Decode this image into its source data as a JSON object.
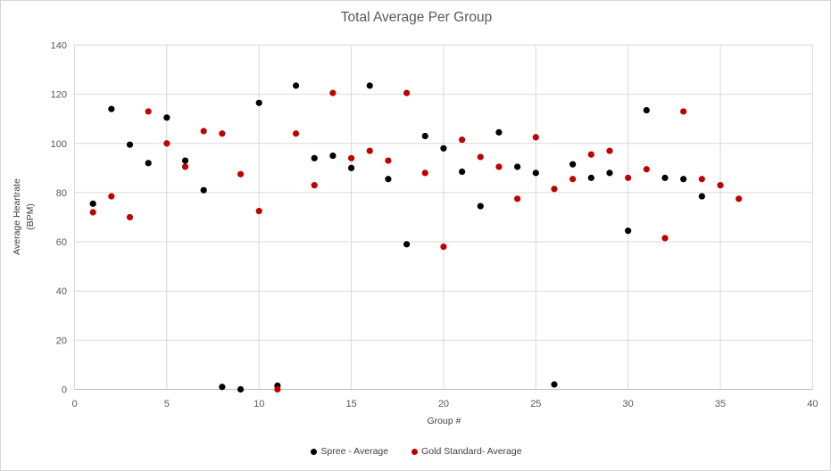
{
  "chart": {
    "title": "Total Average Per Group",
    "x_axis_title": "Group #",
    "y_axis_label_lines": [
      "Average Heartrate",
      "(BPM)"
    ]
  },
  "chart_data": {
    "type": "scatter",
    "title": "Total Average Per Group",
    "xlabel": "Group #",
    "ylabel": "Average Heartrate (BPM)",
    "xlim": [
      0,
      40
    ],
    "ylim": [
      0,
      140
    ],
    "x_ticks": [
      0,
      5,
      10,
      15,
      20,
      25,
      30,
      35,
      40
    ],
    "y_ticks": [
      0,
      20,
      40,
      60,
      80,
      100,
      120,
      140
    ],
    "grid": true,
    "legend_position": "bottom",
    "gridline_color": "#d9d9d9",
    "axis_line_color": "#bfbfbf",
    "series": [
      {
        "name": "Spree - Average",
        "color": "#000000",
        "points": [
          [
            1,
            75.5
          ],
          [
            2,
            114
          ],
          [
            3,
            99.5
          ],
          [
            4,
            92
          ],
          [
            5,
            110.5
          ],
          [
            6,
            93
          ],
          [
            7,
            81
          ],
          [
            8,
            1
          ],
          [
            9,
            0
          ],
          [
            10,
            116.5
          ],
          [
            11,
            1.5
          ],
          [
            12,
            123.5
          ],
          [
            13,
            94
          ],
          [
            14,
            95
          ],
          [
            15,
            90
          ],
          [
            16,
            123.5
          ],
          [
            17,
            85.5
          ],
          [
            18,
            59
          ],
          [
            19,
            103
          ],
          [
            20,
            98
          ],
          [
            21,
            88.5
          ],
          [
            22,
            74.5
          ],
          [
            23,
            104.5
          ],
          [
            24,
            90.5
          ],
          [
            25,
            88
          ],
          [
            26,
            2
          ],
          [
            27,
            91.5
          ],
          [
            28,
            86
          ],
          [
            29,
            88
          ],
          [
            30,
            64.5
          ],
          [
            31,
            113.5
          ],
          [
            32,
            86
          ],
          [
            33,
            85.5
          ],
          [
            34,
            78.5
          ]
        ]
      },
      {
        "name": "Gold Standard- Average",
        "color": "#c00000",
        "points": [
          [
            1,
            72
          ],
          [
            2,
            78.5
          ],
          [
            3,
            70
          ],
          [
            4,
            113
          ],
          [
            5,
            100
          ],
          [
            6,
            90.5
          ],
          [
            7,
            105
          ],
          [
            8,
            104
          ],
          [
            9,
            87.5
          ],
          [
            10,
            72.5
          ],
          [
            11,
            0
          ],
          [
            12,
            104
          ],
          [
            13,
            83
          ],
          [
            14,
            120.5
          ],
          [
            15,
            94
          ],
          [
            16,
            97
          ],
          [
            17,
            93
          ],
          [
            18,
            120.5
          ],
          [
            19,
            88
          ],
          [
            20,
            58
          ],
          [
            21,
            101.5
          ],
          [
            22,
            94.5
          ],
          [
            23,
            90.5
          ],
          [
            24,
            77.5
          ],
          [
            25,
            102.5
          ],
          [
            26,
            81.5
          ],
          [
            27,
            85.5
          ],
          [
            28,
            95.5
          ],
          [
            29,
            97
          ],
          [
            30,
            86
          ],
          [
            31,
            89.5
          ],
          [
            32,
            61.5
          ],
          [
            33,
            113
          ],
          [
            34,
            85.5
          ],
          [
            35,
            83
          ],
          [
            36,
            77.5
          ]
        ]
      }
    ]
  }
}
